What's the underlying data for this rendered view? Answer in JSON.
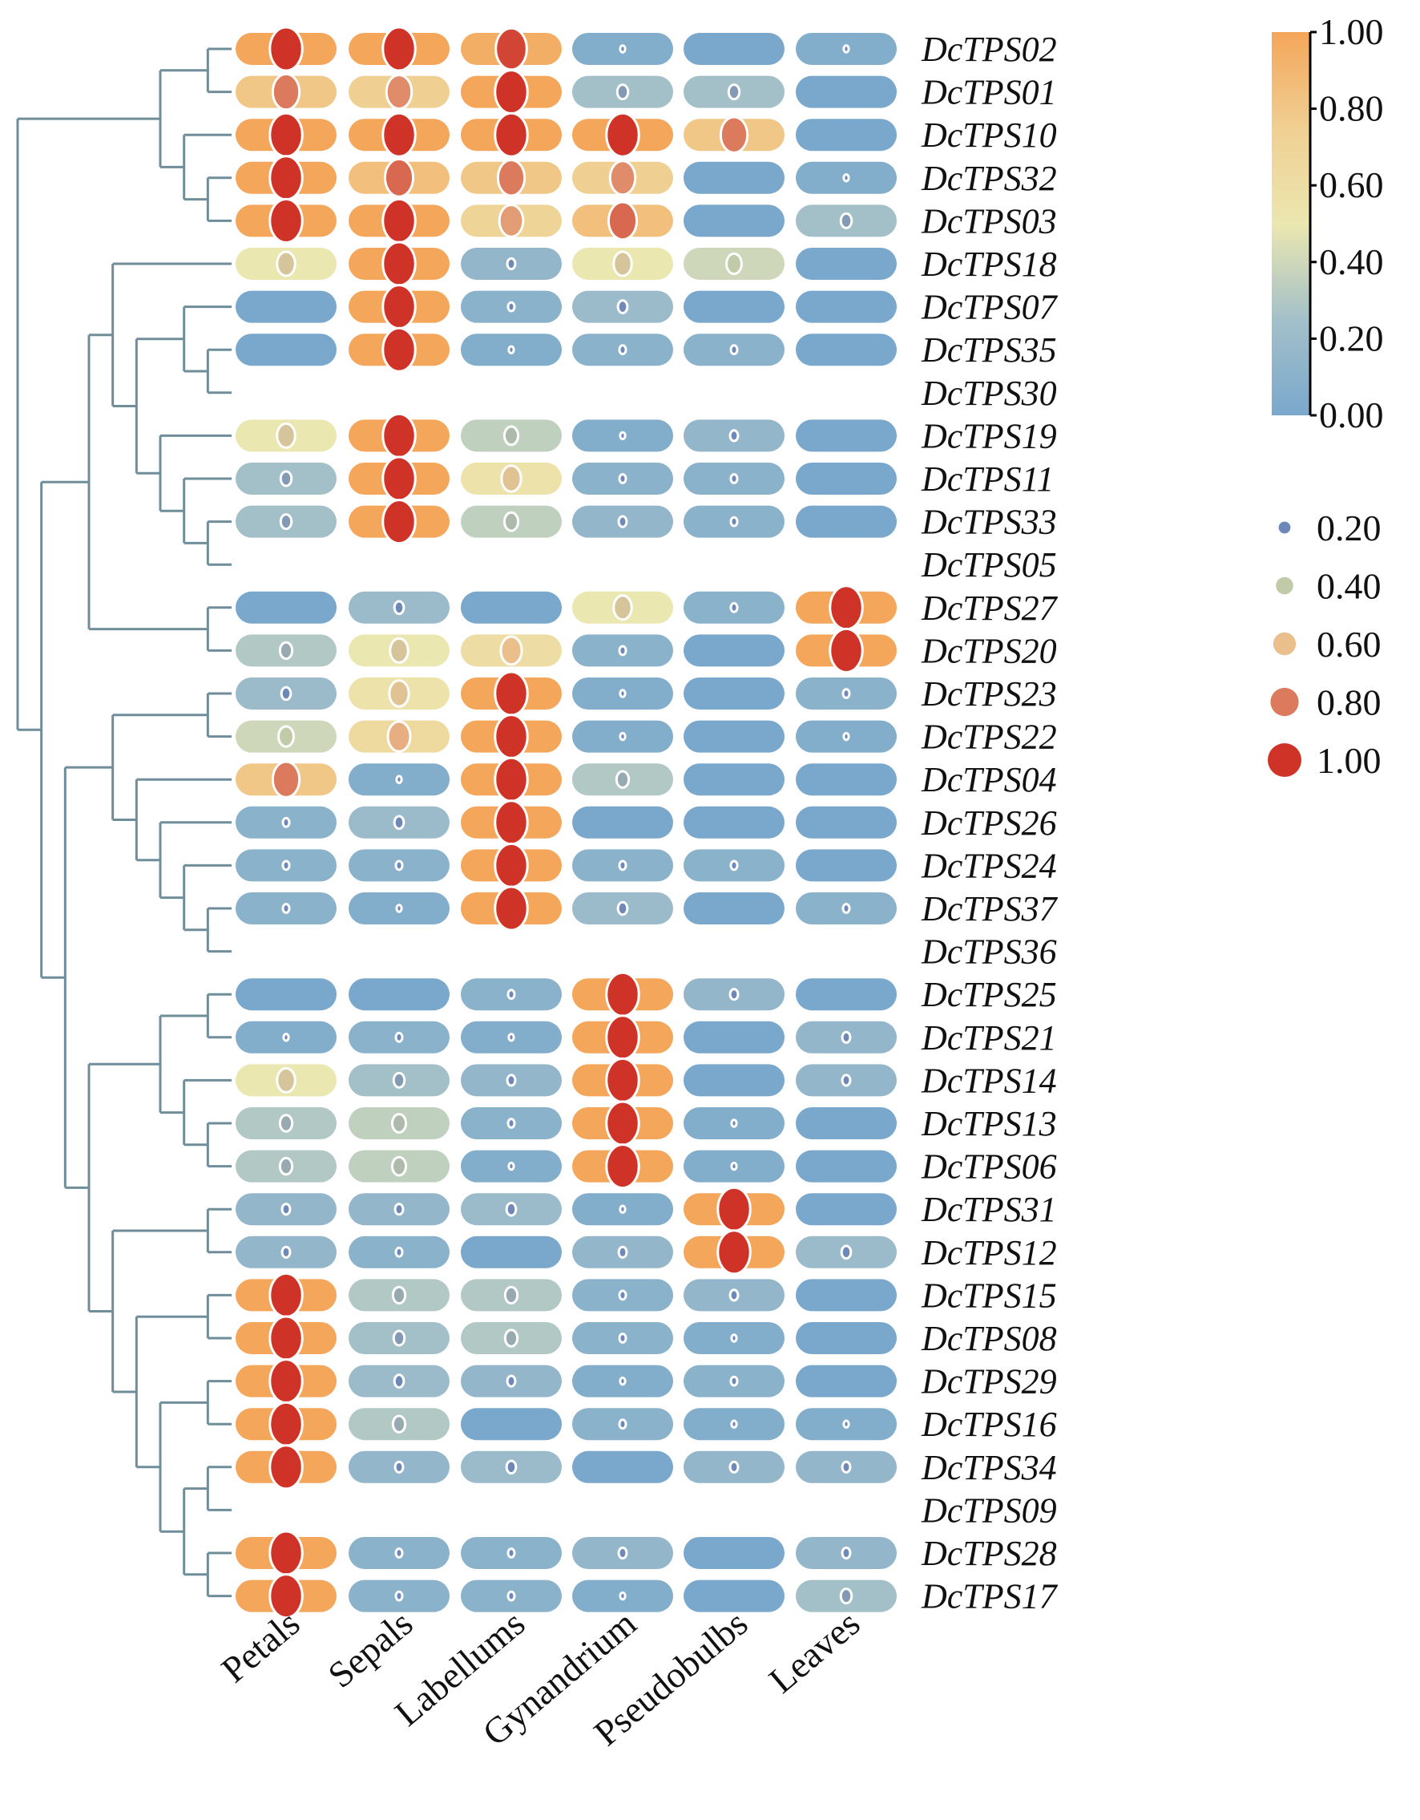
{
  "chart_data": {
    "type": "heatmap",
    "subtype": "dot-heatmap with dendrogram",
    "columns": [
      "Petals",
      "Sepals",
      "Labellums",
      "Gynandrium",
      "Pseudobulbs",
      "Leaves"
    ],
    "rows": [
      {
        "gene": "DcTPS02",
        "values": [
          1,
          1,
          0.95,
          0.05,
          0,
          0.05
        ]
      },
      {
        "gene": "DcTPS01",
        "values": [
          0.8,
          0.75,
          1,
          0.25,
          0.25,
          0
        ]
      },
      {
        "gene": "DcTPS10",
        "values": [
          1,
          1,
          1,
          1,
          0.8,
          0
        ]
      },
      {
        "gene": "DcTPS32",
        "values": [
          1,
          0.85,
          0.8,
          0.75,
          0,
          0.05
        ]
      },
      {
        "gene": "DcTPS03",
        "values": [
          1,
          1,
          0.7,
          0.85,
          0,
          0.25
        ]
      },
      {
        "gene": "DcTPS18",
        "values": [
          0.5,
          1,
          0.15,
          0.5,
          0.4,
          0
        ]
      },
      {
        "gene": "DcTPS07",
        "values": [
          0,
          1,
          0.1,
          0.2,
          0,
          0
        ]
      },
      {
        "gene": "DcTPS35",
        "values": [
          0,
          1,
          0.05,
          0.1,
          0.1,
          0
        ]
      },
      {
        "gene": "DcTPS30",
        "values": null
      },
      {
        "gene": "DcTPS19",
        "values": [
          0.5,
          1,
          0.35,
          0.05,
          0.15,
          0
        ]
      },
      {
        "gene": "DcTPS11",
        "values": [
          0.25,
          1,
          0.55,
          0.1,
          0.1,
          0
        ]
      },
      {
        "gene": "DcTPS33",
        "values": [
          0.25,
          1,
          0.35,
          0.15,
          0.1,
          0
        ]
      },
      {
        "gene": "DcTPS05",
        "values": null
      },
      {
        "gene": "DcTPS27",
        "values": [
          0,
          0.2,
          0,
          0.5,
          0.1,
          1
        ]
      },
      {
        "gene": "DcTPS20",
        "values": [
          0.3,
          0.5,
          0.6,
          0.1,
          0,
          1
        ]
      },
      {
        "gene": "DcTPS23",
        "values": [
          0.2,
          0.55,
          1,
          0.05,
          0,
          0.1
        ]
      },
      {
        "gene": "DcTPS22",
        "values": [
          0.4,
          0.65,
          1,
          0.05,
          0,
          0.05
        ]
      },
      {
        "gene": "DcTPS04",
        "values": [
          0.8,
          0.05,
          1,
          0.3,
          0,
          0
        ]
      },
      {
        "gene": "DcTPS26",
        "values": [
          0.1,
          0.2,
          1,
          0,
          0,
          0
        ]
      },
      {
        "gene": "DcTPS24",
        "values": [
          0.1,
          0.1,
          1,
          0.1,
          0.1,
          0
        ]
      },
      {
        "gene": "DcTPS37",
        "values": [
          0.1,
          0.05,
          1,
          0.2,
          0,
          0.1
        ]
      },
      {
        "gene": "DcTPS36",
        "values": null
      },
      {
        "gene": "DcTPS25",
        "values": [
          0,
          0,
          0.1,
          1,
          0.15,
          0
        ]
      },
      {
        "gene": "DcTPS21",
        "values": [
          0.05,
          0.1,
          0.05,
          1,
          0,
          0.15
        ]
      },
      {
        "gene": "DcTPS14",
        "values": [
          0.5,
          0.25,
          0.15,
          1,
          0,
          0.15
        ]
      },
      {
        "gene": "DcTPS13",
        "values": [
          0.3,
          0.35,
          0.1,
          1,
          0.05,
          0
        ]
      },
      {
        "gene": "DcTPS06",
        "values": [
          0.3,
          0.35,
          0.05,
          1,
          0.05,
          0
        ]
      },
      {
        "gene": "DcTPS31",
        "values": [
          0.15,
          0.15,
          0.2,
          0.05,
          1,
          0
        ]
      },
      {
        "gene": "DcTPS12",
        "values": [
          0.15,
          0.1,
          0,
          0.15,
          1,
          0.2
        ]
      },
      {
        "gene": "DcTPS15",
        "values": [
          1,
          0.3,
          0.3,
          0.1,
          0.15,
          0
        ]
      },
      {
        "gene": "DcTPS08",
        "values": [
          1,
          0.25,
          0.3,
          0.1,
          0.05,
          0
        ]
      },
      {
        "gene": "DcTPS29",
        "values": [
          1,
          0.2,
          0.15,
          0.05,
          0.1,
          0
        ]
      },
      {
        "gene": "DcTPS16",
        "values": [
          1,
          0.3,
          0,
          0.1,
          0.05,
          0.05
        ]
      },
      {
        "gene": "DcTPS34",
        "values": [
          1,
          0.15,
          0.2,
          0,
          0.15,
          0.15
        ]
      },
      {
        "gene": "DcTPS09",
        "values": null
      },
      {
        "gene": "DcTPS28",
        "values": [
          1,
          0.1,
          0.1,
          0.15,
          0,
          0.15
        ]
      },
      {
        "gene": "DcTPS17",
        "values": [
          1,
          0.1,
          0.1,
          0.05,
          0,
          0.25
        ]
      }
    ],
    "dendrogram": [
      [
        [
          [
            "DcTPS02",
            "DcTPS01"
          ],
          [
            "DcTPS10",
            [
              "DcTPS32",
              "DcTPS03"
            ]
          ]
        ]
      ],
      [
        [
          [
            "DcTPS18",
            [
              [
                "DcTPS07",
                [
                  "DcTPS35",
                  "DcTPS30"
                ]
              ],
              [
                "DcTPS19",
                [
                  "DcTPS11",
                  [
                    "DcTPS33",
                    "DcTPS05"
                  ]
                ]
              ]
            ]
          ],
          [
            "DcTPS27",
            "DcTPS20"
          ]
        ],
        [
          [
            [
              "DcTPS23",
              "DcTPS22"
            ],
            [
              "DcTPS04",
              [
                "DcTPS26",
                [
                  "DcTPS24",
                  [
                    "DcTPS37",
                    "DcTPS36"
                  ]
                ]
              ]
            ]
          ],
          [
            [
              [
                "DcTPS25",
                "DcTPS21"
              ],
              [
                "DcTPS14",
                [
                  "DcTPS13",
                  "DcTPS06"
                ]
              ]
            ],
            [
              [
                "DcTPS31",
                "DcTPS12"
              ],
              [
                [
                  "DcTPS15",
                  "DcTPS08"
                ],
                [
                  [
                    "DcTPS29",
                    "DcTPS16"
                  ],
                  [
                    [
                      "DcTPS34",
                      "DcTPS09"
                    ],
                    [
                      "DcTPS28",
                      "DcTPS17"
                    ]
                  ]
                ]
              ]
            ]
          ]
        ]
      ]
    ],
    "colorbar": {
      "ticks": [
        "1.00",
        "0.80",
        "0.60",
        "0.40",
        "0.20",
        "0.00"
      ],
      "range": [
        0,
        1
      ],
      "colors": [
        "#7aa8cc",
        "#a3c0c9",
        "#ebe7b0",
        "#f0cf92",
        "#f4a65a"
      ]
    },
    "size_legend": {
      "values": [
        0.2,
        0.4,
        0.6,
        0.8,
        1.0
      ],
      "labels": [
        "0.20",
        "0.40",
        "0.60",
        "0.80",
        "1.00"
      ],
      "colors": [
        "#6e88b8",
        "#c2cba8",
        "#eabf8c",
        "#dc7a5e",
        "#cf3327"
      ]
    },
    "grid": false
  }
}
